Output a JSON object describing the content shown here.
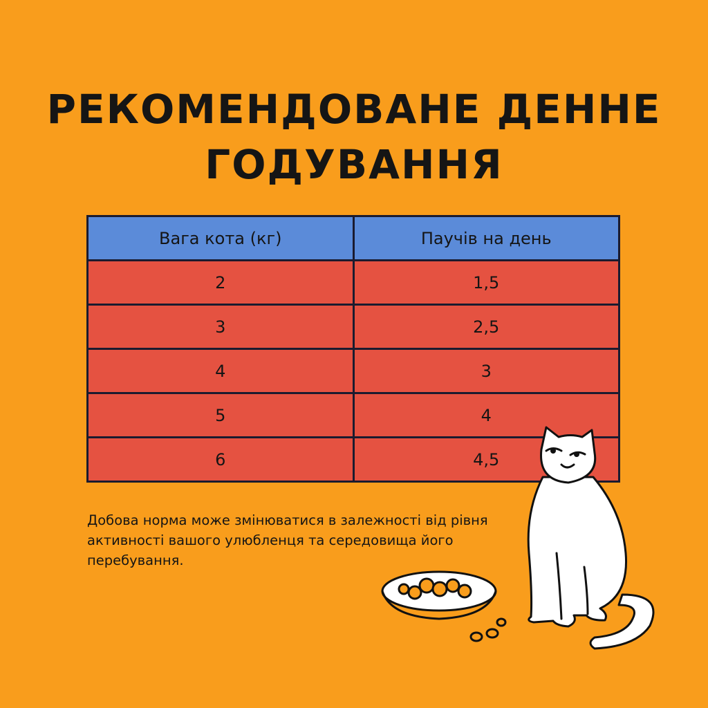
{
  "title": [
    "РЕКОМЕНДОВАНЕ ДЕННЕ",
    "ГОДУВАННЯ"
  ],
  "table": {
    "header": [
      "Вага кота (кг)",
      "Паучів на день"
    ],
    "rows": [
      [
        "2",
        "1,5"
      ],
      [
        "3",
        "2,5"
      ],
      [
        "4",
        "3"
      ],
      [
        "5",
        "4"
      ],
      [
        "6",
        "4,5"
      ]
    ]
  },
  "note": "Добова норма може змінюватися в залежності від рівня активності вашого улюбленця та середовища його перебування."
}
